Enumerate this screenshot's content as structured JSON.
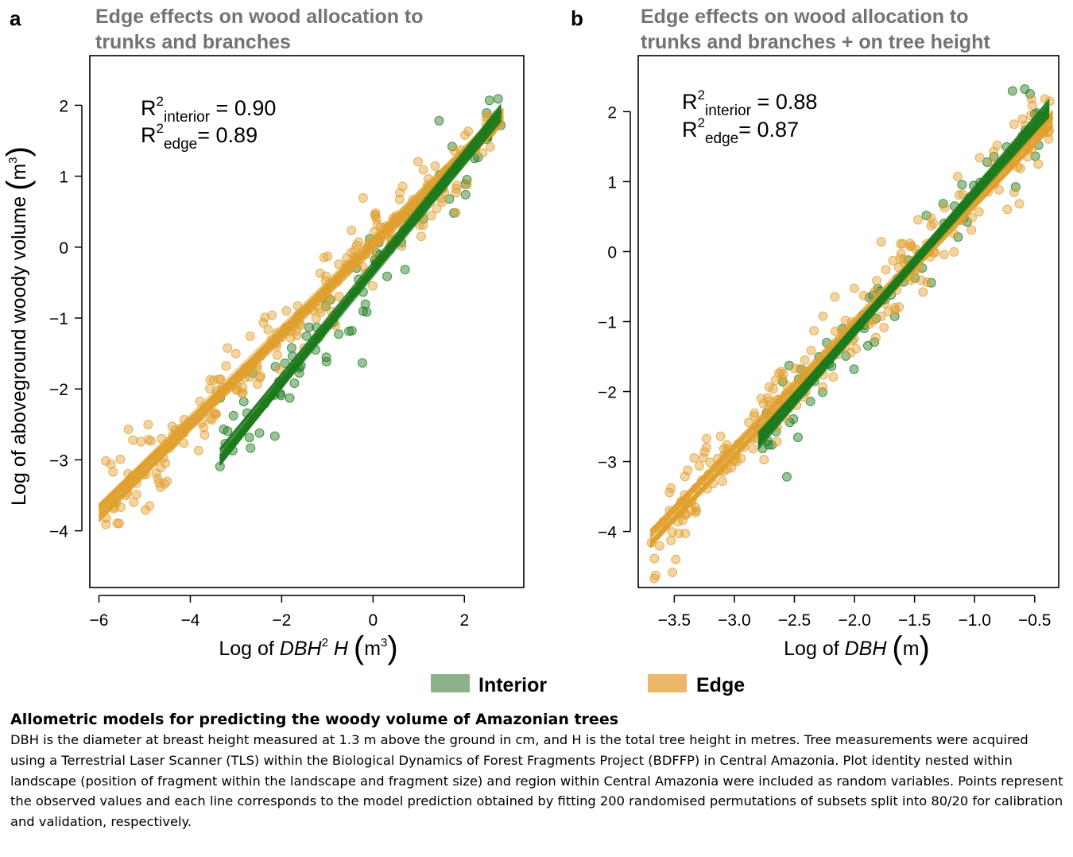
{
  "figure": {
    "colors": {
      "interior": "#1e7a1e",
      "edge": "#e0a030",
      "interior_legend": "#8cb28c",
      "edge_legend": "#ecb768",
      "title": "#737373"
    },
    "legend": [
      {
        "label": "Interior",
        "color": "#8cb28c"
      },
      {
        "label": "Edge",
        "color": "#ecb768"
      }
    ],
    "y_axis_label": "Log of aboveground woody volume (m3)"
  },
  "chart_data": [
    {
      "panel": "a",
      "type": "scatter",
      "title": "Edge effects on wood allocation to trunks and branches",
      "xlabel": "Log of DBH2 H (m3)",
      "ylabel": "Log of aboveground woody volume (m3)",
      "xlim": [
        -6.2,
        3.3
      ],
      "ylim": [
        -4.8,
        2.7
      ],
      "xticks": [
        -6,
        -4,
        -2,
        0,
        2
      ],
      "yticks": [
        -4,
        -3,
        -2,
        -1,
        0,
        1,
        2
      ],
      "annotations": [
        {
          "label": "interior",
          "r2": "0.90"
        },
        {
          "label": "edge",
          "r2": "0.89"
        }
      ],
      "series": [
        {
          "name": "Interior",
          "fit_x": [
            -3.35,
            2.8
          ],
          "fit_y": [
            -2.95,
            1.9
          ]
        },
        {
          "name": "Edge",
          "fit_x": [
            -6.0,
            2.85
          ],
          "fit_y": [
            -3.75,
            1.85
          ]
        }
      ]
    },
    {
      "panel": "b",
      "type": "scatter",
      "title": "Edge effects on wood allocation to trunks and branches + on tree height",
      "xlabel": "Log of DBH (m)",
      "ylabel": "Log of aboveground woody volume (m3)",
      "xlim": [
        -3.8,
        -0.3
      ],
      "ylim": [
        -4.8,
        2.8
      ],
      "xticks": [
        -3.5,
        -3.0,
        -2.5,
        -2.0,
        -1.5,
        -1.0,
        -0.5
      ],
      "xticklabels": [
        "−3.5",
        "−3.0",
        "−2.5",
        "−2.0",
        "−1.5",
        "−1.0",
        "−0.5"
      ],
      "yticks": [
        -4,
        -3,
        -2,
        -1,
        0,
        1,
        2
      ],
      "annotations": [
        {
          "label": "interior",
          "r2": "0.88"
        },
        {
          "label": "edge",
          "r2": "0.87"
        }
      ],
      "series": [
        {
          "name": "Interior",
          "fit_x": [
            -2.8,
            -0.38
          ],
          "fit_y": [
            -2.7,
            2.05
          ]
        },
        {
          "name": "Edge",
          "fit_x": [
            -3.7,
            -0.35
          ],
          "fit_y": [
            -4.1,
            1.9
          ]
        }
      ]
    }
  ],
  "caption": {
    "title": "Allometric models for predicting the woody volume of Amazonian trees",
    "body": "DBH is the diameter at breast height measured at 1.3 m above the ground in cm, and H is the total tree height in metres. Tree measurements were acquired using a Terrestrial Laser Scanner (TLS) within the Biological Dynamics of Forest Fragments Project (BDFFP) in Central Amazonia. Plot identity nested within landscape (position of fragment within the landscape and fragment size) and region within Central Amazonia were included as random variables. Points represent the observed values and each line corresponds to the model prediction obtained by fitting 200 randomised permutations of subsets split into 80/20 for calibration and validation, respectively."
  }
}
